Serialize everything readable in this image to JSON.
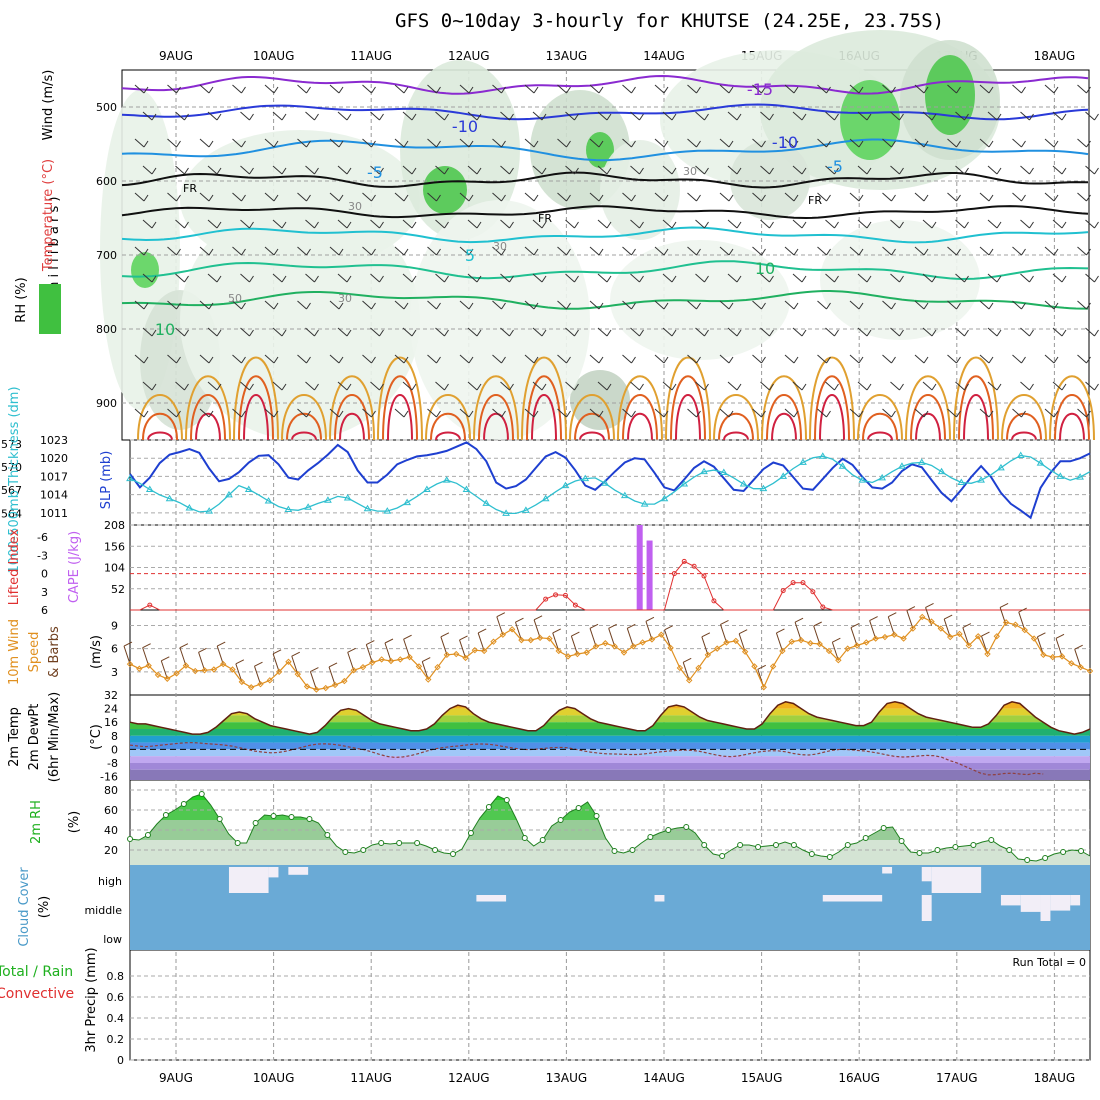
{
  "title": "GFS 0~10day 3-hourly for KHUTSE (24.25E, 23.75S)",
  "dates": [
    "9AUG",
    "10AUG",
    "11AUG",
    "12AUG",
    "13AUG",
    "14AUG",
    "15AUG",
    "16AUG",
    "17AUG",
    "18AUG"
  ],
  "colors": {
    "slp": "#1e3fd0",
    "thickness": "#2fbfcf",
    "lifted_index": "#e03030",
    "cape": "#c060f0",
    "wind_speed": "#e09020",
    "barb": "#704020",
    "rh": "#1fb01f",
    "cloud_bg": "#6aaad6",
    "cloud_fill": "#f2eef7",
    "dewpoint": "#904040",
    "temp_line": "#602010"
  },
  "labels": {
    "upper_wind": "Wind (m/s)",
    "upper_temp": "Temperature (°C)",
    "upper_rh": "RH (%)",
    "upper_units": "( m i l l i b a r s )",
    "thickness": "1000-500mb Thickness (dm)",
    "slp": "SLP (mb)",
    "lifted": "Lifted Index",
    "cape": "CAPE (J/kg)",
    "wind10_a": "10m Wind",
    "wind10_b": "Speed",
    "wind10_c": "& Barbs",
    "wind10_units": "(m/s)",
    "temp_a": "2m Temp",
    "temp_b": "2m DewPt",
    "temp_c": "(6hr Min/Max)",
    "temp_units": "(°C)",
    "rh2m": "2m RH",
    "rh2m_units": "(%)",
    "cloud": "Cloud Cover",
    "cloud_units": "(%)",
    "precip_a": "Total / Rain",
    "precip_b": "Convective",
    "precip_c": "3hr Precip (mm)",
    "run_total": "Run Total = 0"
  },
  "chart_data": [
    {
      "type": "heatmap",
      "name": "upper air cross-section",
      "y_ticks": [
        "500",
        "600",
        "700",
        "800",
        "900"
      ],
      "ylim": [
        1000,
        450
      ],
      "contour_labels": [
        "-15",
        "-10",
        "-10",
        "-5",
        "-5",
        "FR",
        "FR",
        "FR",
        "5",
        "10",
        "10",
        "30",
        "30",
        "30",
        "30",
        "50"
      ]
    },
    {
      "type": "line",
      "series": [
        {
          "name": "SLP (mb)",
          "axis": "right",
          "values": [
            1017.4,
            1015.2,
            1016.8,
            1019.2,
            1020.6,
            1021.0,
            1021.5,
            1020.9,
            1018.3,
            1016.2,
            1016.6,
            1017.7,
            1019.3,
            1020.4,
            1020.5,
            1019.0,
            1016.8,
            1016.5,
            1018.0,
            1019.2,
            1020.6,
            1022.2,
            1021.0,
            1018.0,
            1016.0,
            1016.0,
            1017.3,
            1019.0,
            1019.7,
            1020.3,
            1020.5,
            1020.8,
            1021.2,
            1021.9,
            1022.6,
            1021.5,
            1019.5,
            1016.0,
            1015.0,
            1015.4,
            1016.5,
            1018.4,
            1020.3,
            1021.0,
            1020.1,
            1018.0,
            1015.5,
            1014.8,
            1016.2,
            1017.8,
            1019.3,
            1020.0,
            1019.8,
            1017.6,
            1015.2,
            1014.7,
            1016.5,
            1018.4,
            1019.5,
            1018.6,
            1016.7,
            1014.8,
            1014.6,
            1016.4,
            1018.2,
            1019.3,
            1018.8,
            1016.9,
            1015.0,
            1014.8,
            1016.6,
            1018.4,
            1019.9,
            1018.9,
            1016.9,
            1015.2,
            1015.0,
            1016.0,
            1017.9,
            1019.0,
            1018.5,
            1016.4,
            1014.3,
            1012.9,
            1014.8,
            1016.9,
            1018.7,
            1016.9,
            1014.3,
            1012.5,
            1011.4,
            1010.2,
            1015.1,
            1017.6,
            1019.5,
            1019.5,
            1020.0,
            1020.8
          ]
        },
        {
          "name": "1000-500mb Thickness (dm)",
          "axis": "left",
          "values": [
            568.5,
            567.9,
            567.1,
            566.4,
            565.9,
            565.4,
            564.7,
            564.2,
            564.3,
            565.2,
            566.4,
            567.6,
            567.1,
            566.4,
            565.6,
            564.9,
            564.5,
            564.4,
            564.8,
            565.3,
            565.7,
            566.2,
            566.0,
            565.3,
            564.6,
            564.3,
            564.3,
            564.7,
            565.4,
            566.2,
            567.1,
            567.8,
            568.3,
            567.9,
            567.1,
            566.2,
            565.3,
            564.5,
            564.0,
            564.0,
            564.4,
            565.1,
            565.9,
            566.8,
            567.6,
            568.2,
            568.5,
            568.6,
            567.9,
            567.0,
            566.3,
            565.6,
            565.2,
            565.2,
            565.9,
            566.8,
            567.8,
            568.7,
            569.4,
            569.6,
            569.3,
            568.6,
            567.8,
            567.2,
            567.2,
            567.9,
            568.8,
            569.8,
            570.6,
            571.2,
            571.4,
            571.0,
            570.1,
            569.0,
            568.3,
            568.0,
            568.6,
            569.4,
            570.1,
            570.5,
            570.6,
            570.2,
            569.4,
            568.6,
            568.0,
            567.9,
            568.3,
            569.0,
            569.9,
            570.8,
            571.5,
            571.3,
            570.5,
            569.6,
            568.8,
            568.3,
            568.7,
            569.4
          ]
        }
      ],
      "left_ticks": [
        "564",
        "567",
        "570",
        "573"
      ],
      "right_ticks": [
        "1011",
        "1014",
        "1017",
        "1020",
        "1023"
      ],
      "left_ylim": [
        562.5,
        573.5
      ],
      "right_ylim": [
        1009,
        1023
      ]
    },
    {
      "type": "line",
      "series": [
        {
          "name": "Lifted Index",
          "axis": "left",
          "values": [
            6,
            6,
            5.2,
            6,
            6,
            6,
            6,
            6,
            6,
            6,
            6,
            6,
            6,
            6,
            6,
            6,
            6,
            6,
            6,
            6,
            6,
            6,
            6,
            6,
            6,
            6,
            6,
            6,
            6,
            6,
            6,
            6,
            6,
            6,
            6,
            6,
            6,
            6,
            6,
            6,
            6,
            6,
            4.2,
            3.5,
            3.6,
            5.2,
            6,
            6,
            6,
            6,
            6,
            6,
            6,
            6,
            6,
            0,
            -2.0,
            -1.2,
            0.4,
            4.5,
            6,
            6,
            6,
            6,
            6,
            6,
            2.8,
            1.5,
            1.5,
            3.0,
            5.5,
            6,
            6,
            6,
            6,
            6,
            6,
            6,
            6,
            6,
            6,
            6,
            6,
            6,
            6,
            6,
            6,
            6,
            6,
            6,
            6,
            6,
            6,
            6,
            6,
            6,
            6,
            6
          ]
        },
        {
          "name": "CAPE (J/kg)",
          "axis": "right",
          "bars": [
            {
              "x": 51.5,
              "value": 208
            },
            {
              "x": 52.5,
              "value": 170
            }
          ]
        }
      ],
      "left_ticks": [
        "-6",
        "-3",
        "0",
        "3",
        "6"
      ],
      "right_ticks": [
        "52",
        "104",
        "156",
        "208"
      ],
      "left_ylim": [
        6,
        -8
      ],
      "right_ylim": [
        0,
        208
      ]
    },
    {
      "type": "line",
      "series": [
        {
          "name": "10m Wind Speed",
          "values": [
            4.0,
            3.4,
            3.8,
            2.6,
            2.1,
            2.8,
            3.8,
            3.1,
            3.2,
            3.3,
            4.0,
            3.3,
            1.7,
            1.0,
            1.4,
            1.9,
            3.0,
            4.3,
            2.7,
            1.1,
            0.7,
            0.9,
            1.3,
            1.8,
            3.2,
            3.6,
            4.2,
            4.6,
            4.4,
            4.6,
            4.9,
            3.7,
            2.0,
            3.6,
            5.2,
            5.3,
            4.8,
            5.8,
            5.7,
            6.9,
            7.8,
            8.5,
            7.1,
            7.1,
            7.4,
            7.3,
            5.7,
            5.0,
            5.3,
            5.5,
            6.3,
            6.7,
            6.3,
            5.5,
            6.3,
            6.8,
            7.2,
            7.8,
            6.1,
            3.5,
            1.9,
            3.5,
            5.2,
            6.0,
            6.8,
            7.0,
            5.6,
            3.7,
            1.0,
            3.7,
            5.7,
            6.9,
            7.1,
            6.7,
            6.6,
            5.7,
            4.5,
            6.0,
            6.4,
            6.8,
            7.3,
            7.5,
            7.8,
            7.3,
            8.6,
            10.1,
            9.5,
            8.6,
            7.5,
            7.9,
            6.4,
            7.6,
            5.3,
            7.6,
            9.4,
            9.1,
            8.4,
            7.3,
            5.2,
            4.9,
            5.0,
            4.1,
            3.6,
            3.1
          ]
        },
        {
          "name": "10m Wind Barbs"
        }
      ],
      "y_ticks": [
        "3",
        "6",
        "9"
      ],
      "ylim": [
        0,
        11
      ]
    },
    {
      "type": "area",
      "series": [
        {
          "name": "2m Temp",
          "values": [
            16,
            15,
            15,
            14,
            13,
            12,
            11,
            10,
            9,
            9,
            10,
            13,
            17,
            21,
            22,
            21,
            18,
            16,
            14,
            13,
            12,
            11,
            10,
            9,
            10,
            14,
            19,
            23,
            24,
            23,
            20,
            17,
            15,
            14,
            13,
            12,
            11,
            11,
            12,
            15,
            20,
            24,
            26,
            25,
            21,
            18,
            16,
            15,
            14,
            13,
            12,
            11,
            11,
            14,
            19,
            23,
            25,
            24,
            21,
            18,
            16,
            15,
            14,
            13,
            12,
            11,
            11,
            14,
            20,
            25,
            26,
            25,
            22,
            19,
            17,
            16,
            15,
            14,
            13,
            12,
            12,
            15,
            21,
            26,
            28,
            27,
            24,
            21,
            19,
            18,
            17,
            16,
            15,
            14,
            14,
            16,
            22,
            27,
            28,
            27,
            24,
            21,
            19,
            18,
            17,
            16,
            15,
            14,
            13,
            13,
            15,
            20,
            26,
            28,
            27,
            23,
            19,
            16,
            13,
            11,
            10,
            9,
            10,
            12
          ]
        },
        {
          "name": "2m DewPt",
          "values": [
            2.5,
            2.0,
            1.6,
            2.0,
            2.5,
            3.0,
            3.5,
            3.9,
            4.0,
            3.7,
            3.3,
            3.0,
            2.6,
            2.0,
            1.0,
            0.0,
            -1.0,
            -1.6,
            -2.0,
            -1.8,
            -1.0,
            0.0,
            1.2,
            2.4,
            3.1,
            3.3,
            3.0,
            2.4,
            1.5,
            0.6,
            -0.2,
            -1.5,
            -3.0,
            -4.2,
            -4.7,
            -4.4,
            -3.6,
            -2.4,
            -1.0,
            0.3,
            1.0,
            1.6,
            2.0,
            2.5,
            3.0,
            3.2,
            3.0,
            2.4,
            1.6,
            0.8,
            0.2,
            -0.1,
            0.1,
            0.6,
            1.0,
            1.2,
            1.0,
            0.2,
            -0.8,
            -1.6,
            -2.2,
            -2.6,
            -2.7,
            -2.8,
            -3.0,
            -3.0,
            -2.6,
            -2.0,
            -1.4,
            -1.0,
            -0.6,
            -0.4,
            -0.6,
            -1.2,
            -2.2,
            -3.2,
            -4.0,
            -4.3,
            -3.8,
            -2.9,
            -2.0,
            -1.2,
            -0.8,
            -0.8,
            -1.4,
            -2.4,
            -3.1,
            -3.3,
            -2.7,
            -1.5,
            -0.5,
            0.0,
            -0.1,
            -0.5,
            -0.9,
            -1.5,
            -2.3,
            -3.3,
            -4.1,
            -4.5,
            -4.3,
            -3.9,
            -3.5,
            -3.7,
            -4.6,
            -6.5,
            -8.0,
            -10.0,
            -12.0,
            -14.0,
            -15.0,
            -14.8,
            -14.2,
            -14.0,
            -14.5,
            -14.8,
            -14.0,
            -14.5
          ]
        }
      ],
      "y_ticks": [
        "-16",
        "-8",
        "0",
        "8",
        "16",
        "24",
        "32"
      ],
      "ylim": [
        -18,
        32
      ]
    },
    {
      "type": "area",
      "series": [
        {
          "name": "2m RH",
          "values": [
            31,
            30,
            35,
            46,
            55,
            60,
            66,
            73,
            76,
            65,
            51,
            36,
            27,
            27,
            47,
            55,
            54,
            55,
            53,
            53,
            51,
            47,
            35,
            24,
            18,
            17,
            20,
            25,
            27,
            26,
            27,
            27,
            27,
            24,
            20,
            17,
            16,
            21,
            37,
            52,
            63,
            74,
            70,
            52,
            32,
            24,
            30,
            44,
            50,
            58,
            62,
            68,
            54,
            32,
            19,
            17,
            20,
            27,
            33,
            37,
            40,
            42,
            43,
            37,
            25,
            16,
            14,
            20,
            25,
            25,
            23,
            24,
            25,
            28,
            25,
            20,
            16,
            14,
            13,
            18,
            25,
            27,
            32,
            37,
            42,
            43,
            29,
            18,
            17,
            17,
            20,
            22,
            23,
            24,
            25,
            28,
            30,
            24,
            20,
            11,
            10,
            9,
            12,
            16,
            18,
            20,
            19,
            14
          ]
        }
      ],
      "y_ticks": [
        "20",
        "40",
        "60",
        "80"
      ],
      "ylim": [
        5,
        90
      ]
    },
    {
      "type": "bar",
      "name": "Cloud Cover",
      "categories": [
        "low",
        "middle",
        "high"
      ],
      "series": [
        {
          "name": "high",
          "blocks": [
            {
              "x0": 10,
              "x1": 14,
              "value": 100
            },
            {
              "x0": 14,
              "x1": 15,
              "value": 40
            },
            {
              "x0": 16,
              "x1": 18,
              "value": 30
            },
            {
              "x0": 76,
              "x1": 77,
              "value": 25
            },
            {
              "x0": 80,
              "x1": 81,
              "value": 55
            },
            {
              "x0": 81,
              "x1": 86,
              "value": 100
            }
          ]
        },
        {
          "name": "middle",
          "blocks": [
            {
              "x0": 35,
              "x1": 38,
              "value": 25
            },
            {
              "x0": 53,
              "x1": 54,
              "value": 25
            },
            {
              "x0": 70,
              "x1": 76,
              "value": 25
            },
            {
              "x0": 80,
              "x1": 81,
              "value": 100
            },
            {
              "x0": 88,
              "x1": 90,
              "value": 40
            },
            {
              "x0": 90,
              "x1": 92,
              "value": 65
            },
            {
              "x0": 92,
              "x1": 93,
              "value": 100
            },
            {
              "x0": 93,
              "x1": 95,
              "value": 60
            },
            {
              "x0": 95,
              "x1": 96,
              "value": 40
            }
          ]
        }
      ]
    },
    {
      "type": "line",
      "series": [
        {
          "name": "3hr Precip (mm)",
          "values": []
        }
      ],
      "y_ticks": [
        "0",
        "0.2",
        "0.4",
        "0.6",
        "0.8"
      ],
      "ylim": [
        0,
        1
      ]
    }
  ]
}
